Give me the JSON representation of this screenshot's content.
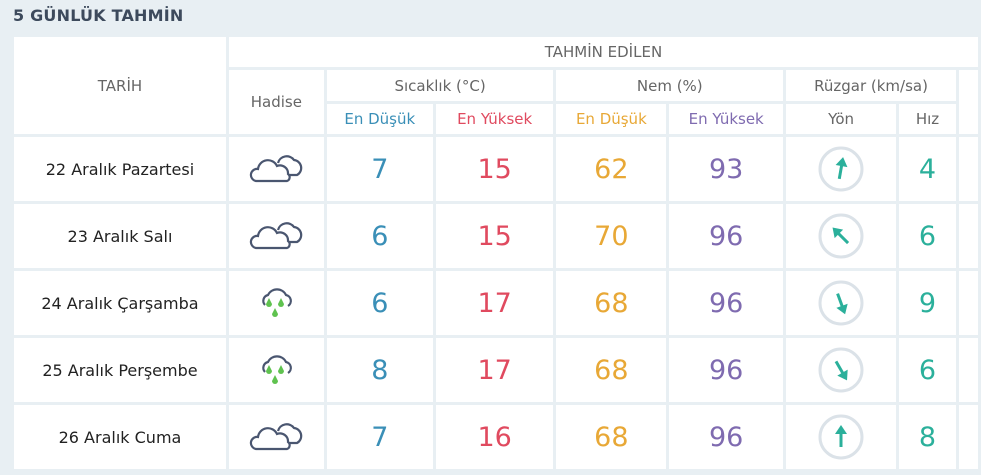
{
  "title": "5 GÜNLÜK TAHMİN",
  "headers": {
    "date": "TARİH",
    "forecast": "TAHMİN EDİLEN",
    "event": "Hadise",
    "temp": "Sıcaklık (°C)",
    "humidity": "Nem (%)",
    "wind": "Rüzgar (km/sa)",
    "min": "En Düşük",
    "max": "En Yüksek",
    "dir": "Yön",
    "speed": "Hız"
  },
  "colors": {
    "temp_min": "#3a8fb7",
    "temp_max": "#e04a5f",
    "hum_min": "#e8a836",
    "hum_max": "#7f6bb0",
    "wind": "#2bb09b"
  },
  "rows": [
    {
      "date": "22 Aralık Pazartesi",
      "event": "cloudy-icon",
      "tmin": "7",
      "tmax": "15",
      "hmin": "62",
      "hmax": "93",
      "wind_dir_deg": 190,
      "speed": "4"
    },
    {
      "date": "23 Aralık Salı",
      "event": "cloudy-icon",
      "tmin": "6",
      "tmax": "15",
      "hmin": "70",
      "hmax": "96",
      "wind_dir_deg": 135,
      "speed": "6"
    },
    {
      "date": "24 Aralık Çarşamba",
      "event": "rain-icon",
      "tmin": "6",
      "tmax": "17",
      "hmin": "68",
      "hmax": "96",
      "wind_dir_deg": 340,
      "speed": "9"
    },
    {
      "date": "25 Aralık Perşembe",
      "event": "rain-icon",
      "tmin": "8",
      "tmax": "17",
      "hmin": "68",
      "hmax": "96",
      "wind_dir_deg": 330,
      "speed": "6"
    },
    {
      "date": "26 Aralık Cuma",
      "event": "cloudy-icon",
      "tmin": "7",
      "tmax": "16",
      "hmin": "68",
      "hmax": "96",
      "wind_dir_deg": 180,
      "speed": "8"
    }
  ]
}
